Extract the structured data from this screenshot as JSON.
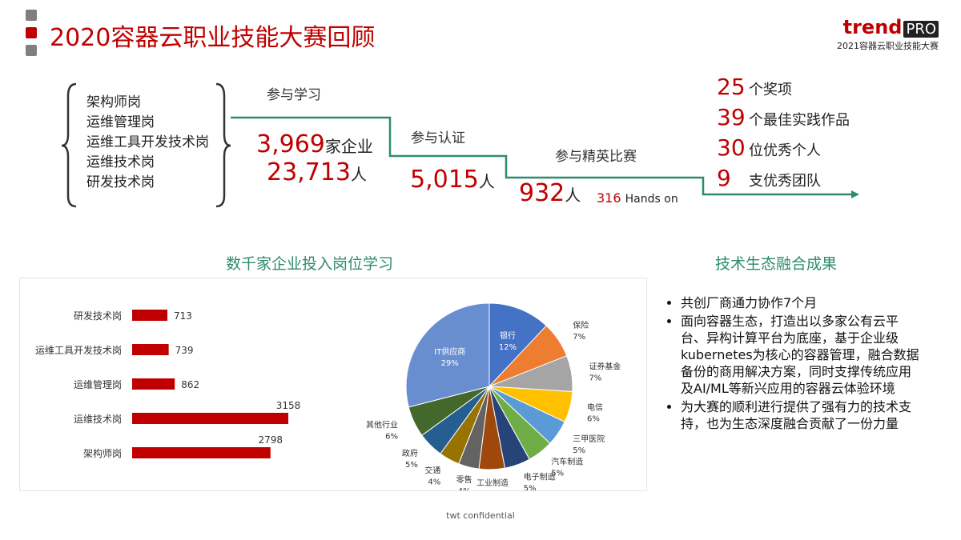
{
  "header": {
    "title": "2020容器云职业技能大赛回顾",
    "logo_brand": "trend",
    "logo_pro": "PRO",
    "logo_subtitle": "2021容器云职业技能大赛"
  },
  "roles": [
    "架构师岗",
    "运维管理岗",
    "运维工具开发技术岗",
    "运维技术岗",
    "研发技术岗"
  ],
  "funnel": {
    "learn": {
      "label": "参与学习",
      "companies": "3,969",
      "companies_unit": "家企业",
      "people": "23,713",
      "people_unit": "人"
    },
    "certify": {
      "label": "参与认证",
      "people": "5,015",
      "people_unit": "人"
    },
    "elite": {
      "label": "参与精英比赛",
      "people": "932",
      "people_unit": "人",
      "hands_on_num": "316",
      "hands_on_label": "Hands on"
    }
  },
  "awards": [
    {
      "num": "25",
      "label": "个奖项"
    },
    {
      "num": "39",
      "label": "个最佳实践作品"
    },
    {
      "num": "30",
      "label": "位优秀个人"
    },
    {
      "num": "9",
      "label": "支优秀团队"
    }
  ],
  "left_section_title": "数千家企业投入岗位学习",
  "right_section_title": "技术生态融合成果",
  "bullets": [
    "共创厂商通力协作7个月",
    "面向容器生态，打造出以多家公有云平台、异构计算平台为底座，基于企业级kubernetes为核心的容器管理，融合数据备份的商用解决方案，同时支撑传统应用及AI/ML等新兴应用的容器云体验环境",
    "为大赛的顺利进行提供了强有力的技术支持，也为生态深度融合贡献了一份力量"
  ],
  "footer": "twt confidential",
  "colors": {
    "accent": "#c00000",
    "teal": "#2e8b6e"
  },
  "chart_data": [
    {
      "type": "bar",
      "orientation": "horizontal",
      "categories": [
        "研发技术岗",
        "运维工具开发技术岗",
        "运维管理岗",
        "运维技术岗",
        "架构师岗"
      ],
      "values": [
        713,
        739,
        862,
        3158,
        2798
      ],
      "color": "#c00000"
    },
    {
      "type": "pie",
      "slices": [
        {
          "label": "银行",
          "pct": "12%",
          "value": 12,
          "color": "#4472c4"
        },
        {
          "label": "保险",
          "pct": "7%",
          "value": 7,
          "color": "#ed7d31"
        },
        {
          "label": "证券基金",
          "pct": "7%",
          "value": 7,
          "color": "#a5a5a5"
        },
        {
          "label": "电信",
          "pct": "6%",
          "value": 6,
          "color": "#ffc000"
        },
        {
          "label": "三甲医院",
          "pct": "5%",
          "value": 5,
          "color": "#5b9bd5"
        },
        {
          "label": "汽车制造",
          "pct": "5%",
          "value": 5,
          "color": "#70ad47"
        },
        {
          "label": "电子制造",
          "pct": "5%",
          "value": 5,
          "color": "#264478"
        },
        {
          "label": "工业制造",
          "pct": "5%",
          "value": 5,
          "color": "#9e480e"
        },
        {
          "label": "零售",
          "pct": "4%",
          "value": 4,
          "color": "#636363"
        },
        {
          "label": "交通",
          "pct": "4%",
          "value": 4,
          "color": "#997300"
        },
        {
          "label": "政府",
          "pct": "5%",
          "value": 5,
          "color": "#255e91"
        },
        {
          "label": "其他行业",
          "pct": "6%",
          "value": 6,
          "color": "#43682b"
        },
        {
          "label": "IT供应商",
          "pct": "29%",
          "value": 29,
          "color": "#698ed0"
        }
      ]
    }
  ]
}
